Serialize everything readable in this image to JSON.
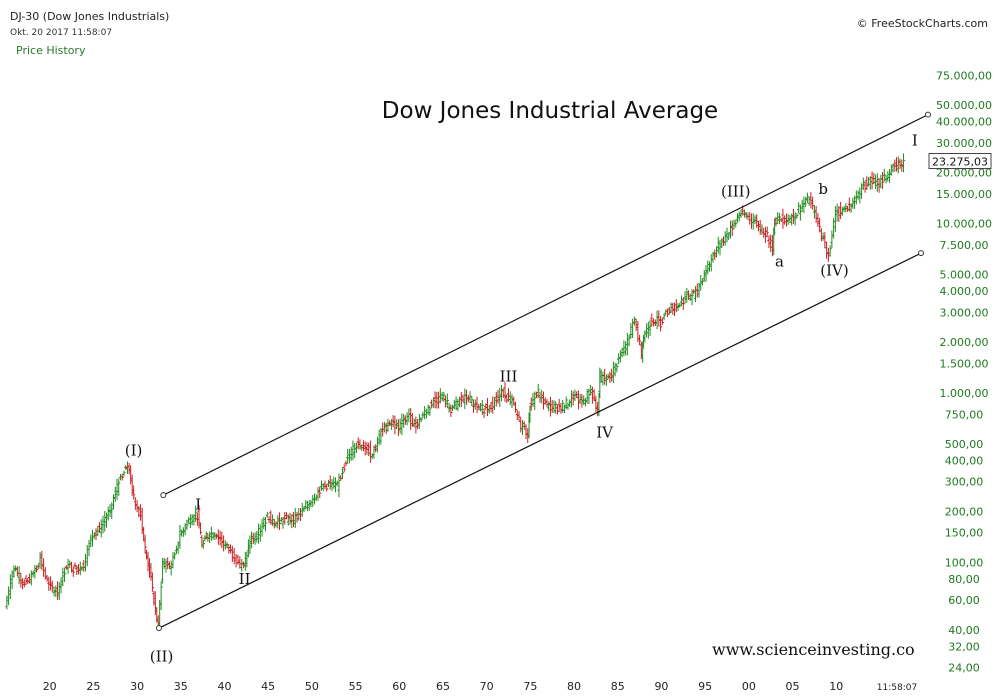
{
  "header": {
    "symbol": "DJ-30 (Dow Jones Industrials)",
    "datetime": "Okt. 20 2017 11:58:07",
    "indicator": "Price History",
    "copyright": "© FreeStockCharts.com",
    "time_label": "11:58:07"
  },
  "chart_data": {
    "type": "line",
    "title": "Dow Jones Industrial Average",
    "watermark": "www.scienceinvesting.co",
    "y_scale": "log",
    "ylim": [
      22,
      95000
    ],
    "xlim": [
      1915,
      2020.5
    ],
    "last_value": 23275.03,
    "last_value_label": "23.275,03",
    "y_ticks": [
      {
        "value": 75000,
        "label": "75.000,00"
      },
      {
        "value": 50000,
        "label": "50.000,00"
      },
      {
        "value": 40000,
        "label": "40.000,00"
      },
      {
        "value": 30000,
        "label": "30.000,00"
      },
      {
        "value": 20000,
        "label": "20.000,00"
      },
      {
        "value": 15000,
        "label": "15.000,00"
      },
      {
        "value": 10000,
        "label": "10.000,00"
      },
      {
        "value": 7500,
        "label": "7.500,00"
      },
      {
        "value": 5000,
        "label": "5.000,00"
      },
      {
        "value": 4000,
        "label": "4.000,00"
      },
      {
        "value": 3000,
        "label": "3.000,00"
      },
      {
        "value": 2000,
        "label": "2.000,00"
      },
      {
        "value": 1500,
        "label": "1.500,00"
      },
      {
        "value": 1000,
        "label": "1.000,00"
      },
      {
        "value": 750,
        "label": "750,00"
      },
      {
        "value": 500,
        "label": "500,00"
      },
      {
        "value": 400,
        "label": "400,00"
      },
      {
        "value": 300,
        "label": "300,00"
      },
      {
        "value": 200,
        "label": "200,00"
      },
      {
        "value": 150,
        "label": "150,00"
      },
      {
        "value": 100,
        "label": "100,00"
      },
      {
        "value": 80,
        "label": "80,00"
      },
      {
        "value": 60,
        "label": "60,00"
      },
      {
        "value": 40,
        "label": "40,00"
      },
      {
        "value": 32,
        "label": "32,00"
      },
      {
        "value": 24,
        "label": "24,00"
      }
    ],
    "x_ticks": [
      {
        "year": 1920,
        "label": "20"
      },
      {
        "year": 1925,
        "label": "25"
      },
      {
        "year": 1930,
        "label": "30"
      },
      {
        "year": 1935,
        "label": "35"
      },
      {
        "year": 1940,
        "label": "40"
      },
      {
        "year": 1945,
        "label": "45"
      },
      {
        "year": 1950,
        "label": "50"
      },
      {
        "year": 1955,
        "label": "55"
      },
      {
        "year": 1960,
        "label": "60"
      },
      {
        "year": 1965,
        "label": "65"
      },
      {
        "year": 1970,
        "label": "70"
      },
      {
        "year": 1975,
        "label": "75"
      },
      {
        "year": 1980,
        "label": "80"
      },
      {
        "year": 1985,
        "label": "85"
      },
      {
        "year": 1990,
        "label": "90"
      },
      {
        "year": 1995,
        "label": "95"
      },
      {
        "year": 2000,
        "label": "00"
      },
      {
        "year": 2005,
        "label": "05"
      },
      {
        "year": 2010,
        "label": "10"
      }
    ],
    "series": [
      {
        "x": [
          1915,
          1916,
          1917,
          1918,
          1919,
          1920,
          1921,
          1922,
          1923,
          1924,
          1925,
          1926,
          1927,
          1928,
          1929,
          1929.7,
          1930.5,
          1931,
          1931.5,
          1932,
          1932.5,
          1933,
          1934,
          1935,
          1936,
          1937,
          1937.5,
          1938,
          1939,
          1940,
          1941,
          1942.3,
          1943,
          1944,
          1945,
          1946,
          1947,
          1948,
          1949,
          1950,
          1951,
          1952,
          1953,
          1954,
          1955,
          1956,
          1957,
          1958,
          1959,
          1960,
          1961,
          1962,
          1963,
          1964,
          1965,
          1966,
          1967,
          1968,
          1969,
          1970,
          1971,
          1972,
          1973,
          1974,
          1974.8,
          1975,
          1976,
          1977,
          1978,
          1979,
          1980,
          1981,
          1982,
          1982.8,
          1983,
          1984,
          1985,
          1986,
          1987,
          1987.8,
          1988,
          1989,
          1990,
          1991,
          1992,
          1993,
          1994,
          1995,
          1996,
          1997,
          1998,
          1999,
          2000,
          2001,
          2002,
          2002.8,
          2003,
          2004,
          2005,
          2006,
          2007,
          2008,
          2009.2,
          2010,
          2011,
          2012,
          2013,
          2014,
          2015,
          2016,
          2017,
          2017.8
        ],
        "y": [
          55,
          95,
          75,
          82,
          105,
          72,
          68,
          96,
          92,
          98,
          150,
          160,
          200,
          300,
          381,
          240,
          190,
          120,
          90,
          60,
          42,
          100,
          95,
          145,
          180,
          190,
          125,
          145,
          150,
          130,
          112,
          93,
          135,
          150,
          190,
          170,
          180,
          180,
          200,
          235,
          270,
          290,
          280,
          400,
          490,
          500,
          430,
          580,
          680,
          630,
          730,
          650,
          770,
          880,
          970,
          800,
          900,
          950,
          800,
          810,
          890,
          1020,
          880,
          650,
          580,
          850,
          1000,
          830,
          820,
          840,
          960,
          880,
          1050,
          780,
          1250,
          1200,
          1500,
          1900,
          2700,
          1750,
          2150,
          2750,
          2600,
          3150,
          3300,
          3750,
          3850,
          5100,
          6450,
          7900,
          9200,
          11500,
          11000,
          10000,
          8800,
          7300,
          10400,
          10700,
          10800,
          12400,
          14000,
          10000,
          6500,
          11500,
          12200,
          13100,
          16500,
          17800,
          17400,
          19700,
          22000,
          23275
        ]
      }
    ],
    "channel_lines": [
      {
        "from": {
          "x": 1933,
          "y": 250
        },
        "to": {
          "x": 2020.5,
          "y": 44000
        }
      },
      {
        "from": {
          "x": 1932.5,
          "y": 41
        },
        "to": {
          "x": 2019.7,
          "y": 6700
        }
      }
    ],
    "annotations": [
      {
        "text": "(I)",
        "x": 1929.6,
        "y": 460
      },
      {
        "text": "(II)",
        "x": 1932.8,
        "y": 28
      },
      {
        "text": "I",
        "x": 1937,
        "y": 220
      },
      {
        "text": "II",
        "x": 1942.3,
        "y": 80
      },
      {
        "text": "III",
        "x": 1972.5,
        "y": 1250
      },
      {
        "text": "IV",
        "x": 1983.5,
        "y": 585
      },
      {
        "text": "(III)",
        "x": 1998.5,
        "y": 15500
      },
      {
        "text": "b",
        "x": 2008.5,
        "y": 16000
      },
      {
        "text": "a",
        "x": 2003.5,
        "y": 6000
      },
      {
        "text": "(IV)",
        "x": 2009.8,
        "y": 5300
      },
      {
        "text": "I",
        "x": 2019,
        "y": 31000
      }
    ]
  }
}
